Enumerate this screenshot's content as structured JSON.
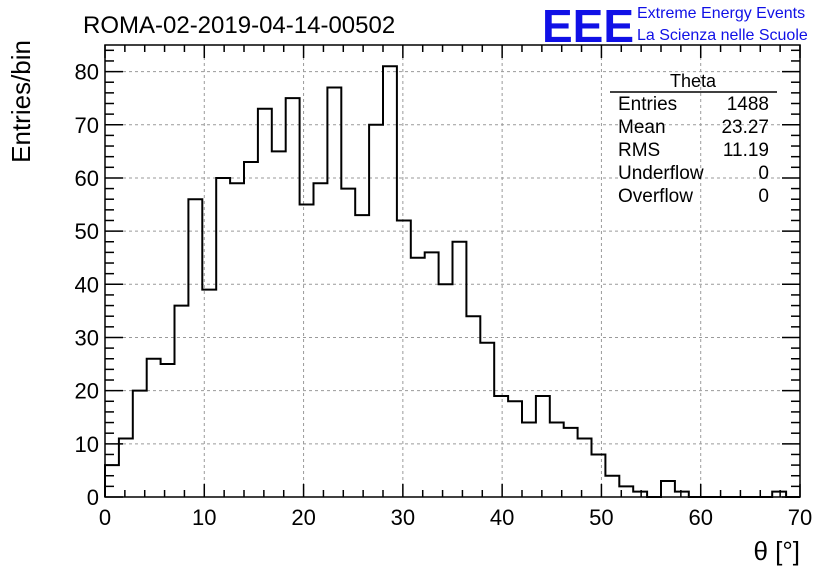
{
  "chart_data": {
    "type": "bar",
    "title": "ROMA-02-2019-04-14-00502",
    "xlabel": "θ [°]",
    "ylabel": "Entries/bin",
    "xlim": [
      0,
      70
    ],
    "ylim": [
      0,
      85
    ],
    "grid": true,
    "bin_width": 1.4,
    "x_ticks": [
      0,
      10,
      20,
      30,
      40,
      50,
      60,
      70
    ],
    "y_ticks": [
      0,
      10,
      20,
      30,
      40,
      50,
      60,
      70,
      80
    ],
    "values": [
      6,
      11,
      20,
      26,
      25,
      36,
      56,
      39,
      60,
      59,
      63,
      73,
      65,
      75,
      55,
      59,
      77,
      58,
      53,
      70,
      81,
      52,
      45,
      46,
      40,
      48,
      34,
      29,
      19,
      18,
      14,
      19,
      14,
      13,
      11,
      8,
      4,
      2,
      1,
      0,
      3,
      1,
      0,
      0,
      0,
      0,
      0,
      0,
      1,
      0
    ]
  },
  "stats_box": {
    "title": "Theta",
    "rows": [
      {
        "label": "Entries",
        "value": "1488"
      },
      {
        "label": "Mean",
        "value": "23.27"
      },
      {
        "label": "RMS",
        "value": "11.19"
      },
      {
        "label": "Underflow",
        "value": "0"
      },
      {
        "label": "Overflow",
        "value": "0"
      }
    ]
  },
  "logo": {
    "mark": "EEE",
    "line1": "Extreme Energy Events",
    "line2": "La Scienza nelle Scuole",
    "color": "#1010e6"
  }
}
